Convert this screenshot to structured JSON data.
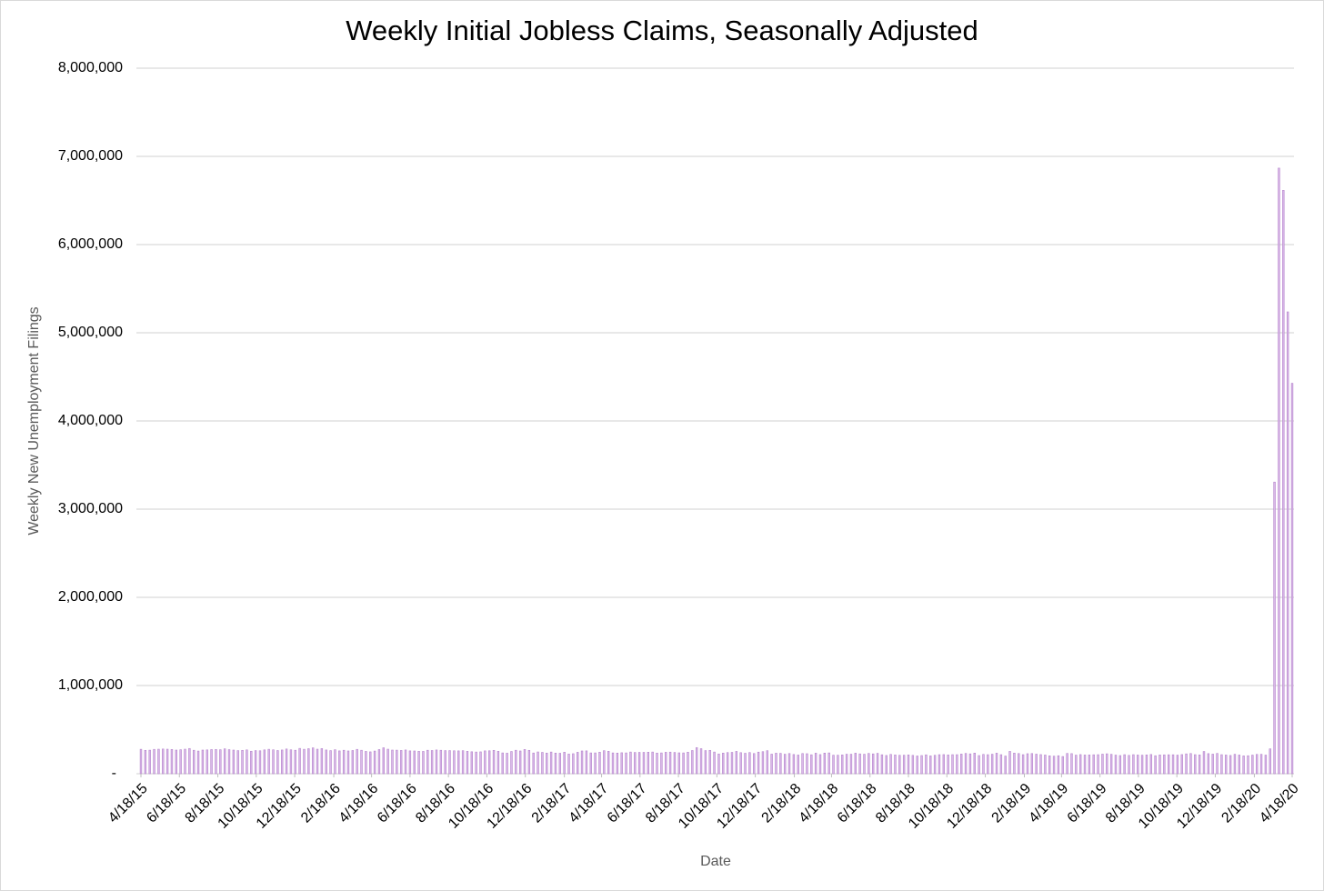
{
  "chart_data": {
    "type": "bar",
    "title": "Weekly Initial Jobless Claims, Seasonally Adjusted",
    "x_label": "Date",
    "y_label": "Weekly New Unemployment Filings",
    "color": "#d9b8e8",
    "edge_color": "#b583cc",
    "grid": true,
    "xlim": [
      "4/18/15",
      "4/18/20"
    ],
    "xticks": [
      "4/18/15",
      "6/18/15",
      "8/18/15",
      "10/18/15",
      "12/18/15",
      "2/18/16",
      "4/18/16",
      "6/18/16",
      "8/18/16",
      "10/18/16",
      "12/18/16",
      "2/18/17",
      "4/18/17",
      "6/18/17",
      "8/18/17",
      "10/18/17",
      "12/18/17",
      "2/18/18",
      "4/18/18",
      "6/18/18",
      "8/18/18",
      "10/18/18",
      "12/18/18",
      "2/18/19",
      "4/18/19",
      "6/18/19",
      "8/18/19",
      "10/18/19",
      "12/18/19",
      "2/18/20",
      "4/18/20"
    ],
    "ylim": [
      0,
      8000000
    ],
    "yticks": [
      {
        "value": 0,
        "label": "-"
      },
      {
        "value": 1000000,
        "label": "1,000,000"
      },
      {
        "value": 2000000,
        "label": "2,000,000"
      },
      {
        "value": 3000000,
        "label": "3,000,000"
      },
      {
        "value": 4000000,
        "label": "4,000,000"
      },
      {
        "value": 5000000,
        "label": "5,000,000"
      },
      {
        "value": 6000000,
        "label": "6,000,000"
      },
      {
        "value": 7000000,
        "label": "7,000,000"
      },
      {
        "value": 8000000,
        "label": "8,000,000"
      }
    ],
    "x": [
      "4/18/15",
      "4/25/15",
      "5/2/15",
      "5/9/15",
      "5/16/15",
      "5/23/15",
      "5/30/15",
      "6/6/15",
      "6/13/15",
      "6/20/15",
      "6/27/15",
      "7/4/15",
      "7/11/15",
      "7/18/15",
      "7/25/15",
      "8/1/15",
      "8/8/15",
      "8/15/15",
      "8/22/15",
      "8/29/15",
      "9/5/15",
      "9/12/15",
      "9/19/15",
      "9/26/15",
      "10/3/15",
      "10/10/15",
      "10/17/15",
      "10/24/15",
      "10/31/15",
      "11/7/15",
      "11/14/15",
      "11/21/15",
      "11/28/15",
      "12/5/15",
      "12/12/15",
      "12/19/15",
      "12/26/15",
      "1/2/16",
      "1/9/16",
      "1/16/16",
      "1/23/16",
      "1/30/16",
      "2/6/16",
      "2/13/16",
      "2/20/16",
      "2/27/16",
      "3/5/16",
      "3/12/16",
      "3/19/16",
      "3/26/16",
      "4/2/16",
      "4/9/16",
      "4/16/16",
      "4/23/16",
      "4/30/16",
      "5/7/16",
      "5/14/16",
      "5/21/16",
      "5/28/16",
      "6/4/16",
      "6/11/16",
      "6/18/16",
      "6/25/16",
      "7/2/16",
      "7/9/16",
      "7/16/16",
      "7/23/16",
      "7/30/16",
      "8/6/16",
      "8/13/16",
      "8/20/16",
      "8/27/16",
      "9/3/16",
      "9/10/16",
      "9/17/16",
      "9/24/16",
      "10/1/16",
      "10/8/16",
      "10/15/16",
      "10/22/16",
      "10/29/16",
      "11/5/16",
      "11/12/16",
      "11/19/16",
      "11/26/16",
      "12/3/16",
      "12/10/16",
      "12/17/16",
      "12/24/16",
      "12/31/16",
      "1/7/17",
      "1/14/17",
      "1/21/17",
      "1/28/17",
      "2/4/17",
      "2/11/17",
      "2/18/17",
      "2/25/17",
      "3/4/17",
      "3/11/17",
      "3/18/17",
      "3/25/17",
      "4/1/17",
      "4/8/17",
      "4/15/17",
      "4/22/17",
      "4/29/17",
      "5/6/17",
      "5/13/17",
      "5/20/17",
      "5/27/17",
      "6/3/17",
      "6/10/17",
      "6/17/17",
      "6/24/17",
      "7/1/17",
      "7/8/17",
      "7/15/17",
      "7/22/17",
      "7/29/17",
      "8/5/17",
      "8/12/17",
      "8/19/17",
      "8/26/17",
      "9/2/17",
      "9/9/17",
      "9/16/17",
      "9/23/17",
      "9/30/17",
      "10/7/17",
      "10/14/17",
      "10/21/17",
      "10/28/17",
      "11/4/17",
      "11/11/17",
      "11/18/17",
      "11/25/17",
      "12/2/17",
      "12/9/17",
      "12/16/17",
      "12/23/17",
      "12/30/17",
      "1/6/18",
      "1/13/18",
      "1/20/18",
      "1/27/18",
      "2/3/18",
      "2/10/18",
      "2/17/18",
      "2/24/18",
      "3/3/18",
      "3/10/18",
      "3/17/18",
      "3/24/18",
      "3/31/18",
      "4/7/18",
      "4/14/18",
      "4/21/18",
      "4/28/18",
      "5/5/18",
      "5/12/18",
      "5/19/18",
      "5/26/18",
      "6/2/18",
      "6/9/18",
      "6/16/18",
      "6/23/18",
      "6/30/18",
      "7/7/18",
      "7/14/18",
      "7/21/18",
      "7/28/18",
      "8/4/18",
      "8/11/18",
      "8/18/18",
      "8/25/18",
      "9/1/18",
      "9/8/18",
      "9/15/18",
      "9/22/18",
      "9/29/18",
      "10/6/18",
      "10/13/18",
      "10/20/18",
      "10/27/18",
      "11/3/18",
      "11/10/18",
      "11/17/18",
      "11/24/18",
      "12/1/18",
      "12/8/18",
      "12/15/18",
      "12/22/18",
      "12/29/18",
      "1/5/19",
      "1/12/19",
      "1/19/19",
      "1/26/19",
      "2/2/19",
      "2/9/19",
      "2/16/19",
      "2/23/19",
      "3/2/19",
      "3/9/19",
      "3/16/19",
      "3/23/19",
      "3/30/19",
      "4/6/19",
      "4/13/19",
      "4/20/19",
      "4/27/19",
      "5/4/19",
      "5/11/19",
      "5/18/19",
      "5/25/19",
      "6/1/19",
      "6/8/19",
      "6/15/19",
      "6/22/19",
      "6/29/19",
      "7/6/19",
      "7/13/19",
      "7/20/19",
      "7/27/19",
      "8/3/19",
      "8/10/19",
      "8/17/19",
      "8/24/19",
      "8/31/19",
      "9/7/19",
      "9/14/19",
      "9/21/19",
      "9/28/19",
      "10/5/19",
      "10/12/19",
      "10/19/19",
      "10/26/19",
      "11/2/19",
      "11/9/19",
      "11/16/19",
      "11/23/19",
      "11/30/19",
      "12/7/19",
      "12/14/19",
      "12/21/19",
      "12/28/19",
      "1/4/20",
      "1/11/20",
      "1/18/20",
      "1/25/20",
      "2/1/20",
      "2/8/20",
      "2/15/20",
      "2/22/20",
      "2/29/20",
      "3/7/20",
      "3/14/20",
      "3/21/20",
      "3/28/20",
      "4/4/20",
      "4/11/20",
      "4/18/20"
    ],
    "values": [
      277000,
      265000,
      267000,
      276000,
      278000,
      280000,
      278000,
      275000,
      268000,
      272000,
      278000,
      286000,
      266000,
      257000,
      268000,
      270000,
      274000,
      275000,
      272000,
      282000,
      273000,
      268000,
      262000,
      265000,
      270000,
      255000,
      262000,
      260000,
      270000,
      277000,
      271000,
      263000,
      269000,
      280000,
      271000,
      266000,
      287000,
      277000,
      284000,
      293000,
      278000,
      285000,
      269000,
      262000,
      272000,
      259000,
      266000,
      258000,
      263000,
      276000,
      266000,
      253000,
      248000,
      257000,
      274000,
      294000,
      278000,
      268000,
      267000,
      264000,
      269000,
      259000,
      258000,
      254000,
      253000,
      266000,
      263000,
      269000,
      266000,
      262000,
      262000,
      260000,
      259000,
      261000,
      254000,
      249000,
      246000,
      248000,
      259000,
      260000,
      265000,
      254000,
      236000,
      233000,
      252000,
      266000,
      258000,
      275000,
      265000,
      235000,
      247000,
      242000,
      234000,
      246000,
      234000,
      232000,
      244000,
      223000,
      227000,
      243000,
      258000,
      259000,
      236000,
      236000,
      244000,
      261000,
      254000,
      236000,
      234000,
      238000,
      236000,
      246000,
      241000,
      242000,
      242000,
      244000,
      246000,
      234000,
      236000,
      243000,
      245000,
      241000,
      237000,
      236000,
      244000,
      263000,
      296000,
      284000,
      262000,
      265000,
      246000,
      224000,
      234000,
      240000,
      242000,
      253000,
      239000,
      232000,
      240000,
      229000,
      245000,
      250000,
      261000,
      222000,
      233000,
      231000,
      221000,
      229000,
      218000,
      212000,
      229000,
      227000,
      215000,
      233000,
      217000,
      234000,
      236000,
      210000,
      210000,
      213000,
      221000,
      221000,
      233000,
      225000,
      221000,
      230000,
      225000,
      231000,
      215000,
      207000,
      219000,
      213000,
      209000,
      210000,
      213000,
      208000,
      201000,
      206000,
      214000,
      202000,
      209000,
      216000,
      217000,
      213000,
      216000,
      216000,
      223000,
      230000,
      225000,
      234000,
      206000,
      219000,
      216000,
      221000,
      233000,
      216000,
      200000,
      253000,
      234000,
      229000,
      216000,
      227000,
      229000,
      222000,
      217000,
      212000,
      203000,
      199000,
      204000,
      195000,
      230000,
      228000,
      211000,
      217000,
      212000,
      213000,
      215000,
      216000,
      222000,
      226000,
      220000,
      211000,
      206000,
      216000,
      208000,
      216000,
      212000,
      210000,
      213000,
      218000,
      204000,
      213000,
      214000,
      215000,
      215000,
      211000,
      217000,
      225000,
      229000,
      216000,
      213000,
      252000,
      228000,
      222000,
      230000,
      216000,
      212000,
      207000,
      220000,
      212000,
      202000,
      204000,
      211000,
      219000,
      220000,
      211000,
      282000,
      3307000,
      6867000,
      6615000,
      5237000,
      4427000
    ]
  }
}
